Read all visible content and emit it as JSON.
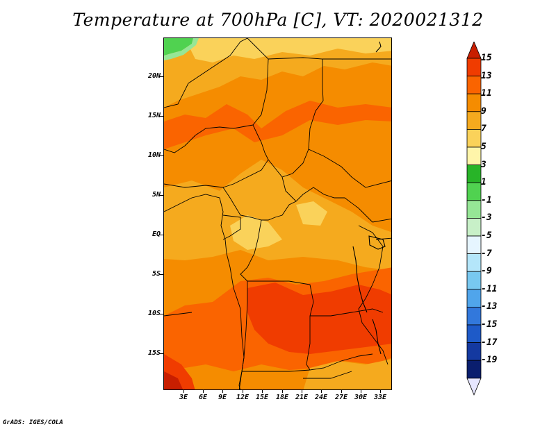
{
  "title": "Temperature at 700hPa [C], VT: 2020021312",
  "credit": "GrADS: IGES/COLA",
  "map": {
    "lat_labels": [
      "20N",
      "15N",
      "10N",
      "5N",
      "EQ",
      "5S",
      "10S",
      "15S"
    ],
    "lon_labels": [
      "3E",
      "6E",
      "9E",
      "12E",
      "15E",
      "18E",
      "21E",
      "24E",
      "27E",
      "30E",
      "33E"
    ]
  },
  "colorbar": {
    "labels": [
      "15",
      "13",
      "11",
      "9",
      "7",
      "5",
      "3",
      "1",
      "-1",
      "-3",
      "-5",
      "-7",
      "-9",
      "-11",
      "-13",
      "-15",
      "-17",
      "-19"
    ],
    "colors": [
      "#c81e00",
      "#f03c00",
      "#fa6400",
      "#f58c00",
      "#f5aa1e",
      "#fad25a",
      "#fff5aa",
      "#28b428",
      "#50d250",
      "#96e696",
      "#c8f0c8",
      "#e6f5ff",
      "#b4e6fa",
      "#78c8f0",
      "#50a5eb",
      "#3278dc",
      "#1e5ac8",
      "#1439a0",
      "#0a1e6e",
      "#e6e6ff"
    ]
  },
  "palette": {
    "warm_15": "#c81e00",
    "warm_13": "#f03c00",
    "warm_11": "#fa6400",
    "warm_9": "#f58c00",
    "warm_7": "#f5aa1e",
    "warm_5": "#fad25a",
    "warm_3": "#fff5aa",
    "green": "#50d250"
  }
}
